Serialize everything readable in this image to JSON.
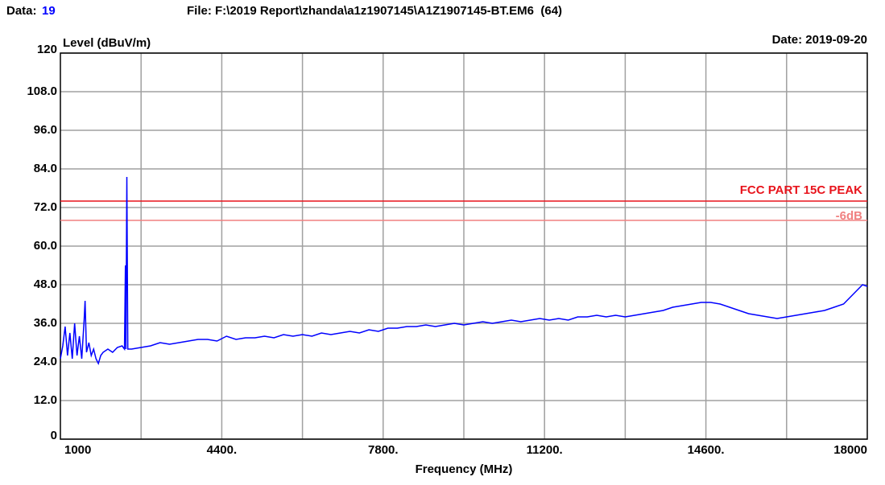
{
  "chart_data": {
    "type": "line",
    "data_label": "Data:",
    "data_number": "19",
    "file": "File: F:\\2019 Report\\zhanda\\a1z1907145\\A1Z1907145-BT.EM6  (64)",
    "y_label": "Level (dBuV/m)",
    "date": "Date: 2019-09-20",
    "x_label": "Frequency (MHz)",
    "xlim": [
      1000,
      18000
    ],
    "xticks": [
      1000,
      {
        "value": 4400,
        "label": "4400."
      },
      {
        "value": 7800,
        "label": "7800."
      },
      {
        "value": 11200,
        "label": "11200."
      },
      {
        "value": 14600,
        "label": "14600."
      },
      18000
    ],
    "xgrid": [
      2700,
      4400,
      6100,
      7800,
      9500,
      11200,
      12900,
      14600,
      16300
    ],
    "ylim": [
      0,
      120
    ],
    "yticks": [
      0,
      {
        "value": 12,
        "label": "12.0"
      },
      {
        "value": 24,
        "label": "24.0"
      },
      {
        "value": 36,
        "label": "36.0"
      },
      {
        "value": 48,
        "label": "48.0"
      },
      {
        "value": 60,
        "label": "60.0"
      },
      {
        "value": 72,
        "label": "72.0"
      },
      {
        "value": 84,
        "label": "84.0"
      },
      {
        "value": 96,
        "label": "96.0"
      },
      {
        "value": 108,
        "label": "108.0"
      },
      120
    ],
    "grid": true,
    "limit_lines": [
      {
        "label": "FCC PART 15C PEAK",
        "value": 74,
        "color": "#e8141c"
      },
      {
        "label": "-6dB",
        "value": 68,
        "color": "#f08080"
      }
    ],
    "color": "#0000ff",
    "x": [
      1000,
      1050,
      1100,
      1150,
      1200,
      1250,
      1300,
      1350,
      1400,
      1450,
      1500,
      1520,
      1550,
      1600,
      1650,
      1700,
      1750,
      1800,
      1850,
      1900,
      2000,
      2100,
      2200,
      2300,
      2350,
      2370,
      2380,
      2400,
      2420,
      2500,
      2700,
      2900,
      3100,
      3300,
      3500,
      3700,
      3900,
      4100,
      4300,
      4500,
      4700,
      4900,
      5100,
      5300,
      5500,
      5700,
      5900,
      6100,
      6300,
      6500,
      6700,
      6900,
      7100,
      7300,
      7500,
      7700,
      7900,
      8100,
      8300,
      8500,
      8700,
      8900,
      9100,
      9300,
      9500,
      9700,
      9900,
      10100,
      10300,
      10500,
      10700,
      10900,
      11100,
      11300,
      11500,
      11700,
      11900,
      12100,
      12300,
      12500,
      12700,
      12900,
      13100,
      13300,
      13500,
      13700,
      13900,
      14100,
      14300,
      14500,
      14700,
      14900,
      15100,
      15300,
      15500,
      15700,
      15900,
      16100,
      16300,
      16500,
      16700,
      16900,
      17100,
      17300,
      17500,
      17700,
      17900,
      18000
    ],
    "values": [
      25,
      29,
      35,
      26,
      33,
      25,
      36,
      26,
      32,
      25,
      37,
      43,
      27,
      30,
      26,
      28,
      25,
      23.5,
      26,
      27,
      28,
      27,
      28.5,
      29,
      28,
      54,
      28,
      81.5,
      28,
      28,
      28.5,
      29,
      30,
      29.5,
      30,
      30.5,
      31,
      31,
      30.5,
      32,
      31,
      31.5,
      31.5,
      32,
      31.5,
      32.5,
      32,
      32.5,
      32,
      33,
      32.5,
      33,
      33.5,
      33,
      34,
      33.5,
      34.5,
      34.5,
      35,
      35,
      35.5,
      35,
      35.5,
      36,
      35.5,
      36,
      36.5,
      36,
      36.5,
      37,
      36.5,
      37,
      37.5,
      37,
      37.5,
      37,
      38,
      38,
      38.5,
      38,
      38.5,
      38,
      38.5,
      39,
      39.5,
      40,
      41,
      41.5,
      42,
      42.5,
      42.5,
      42,
      41,
      40,
      39,
      38.5,
      38,
      37.5,
      38,
      38.5,
      39,
      39.5,
      40,
      41,
      42,
      45,
      48,
      47.5
    ]
  }
}
